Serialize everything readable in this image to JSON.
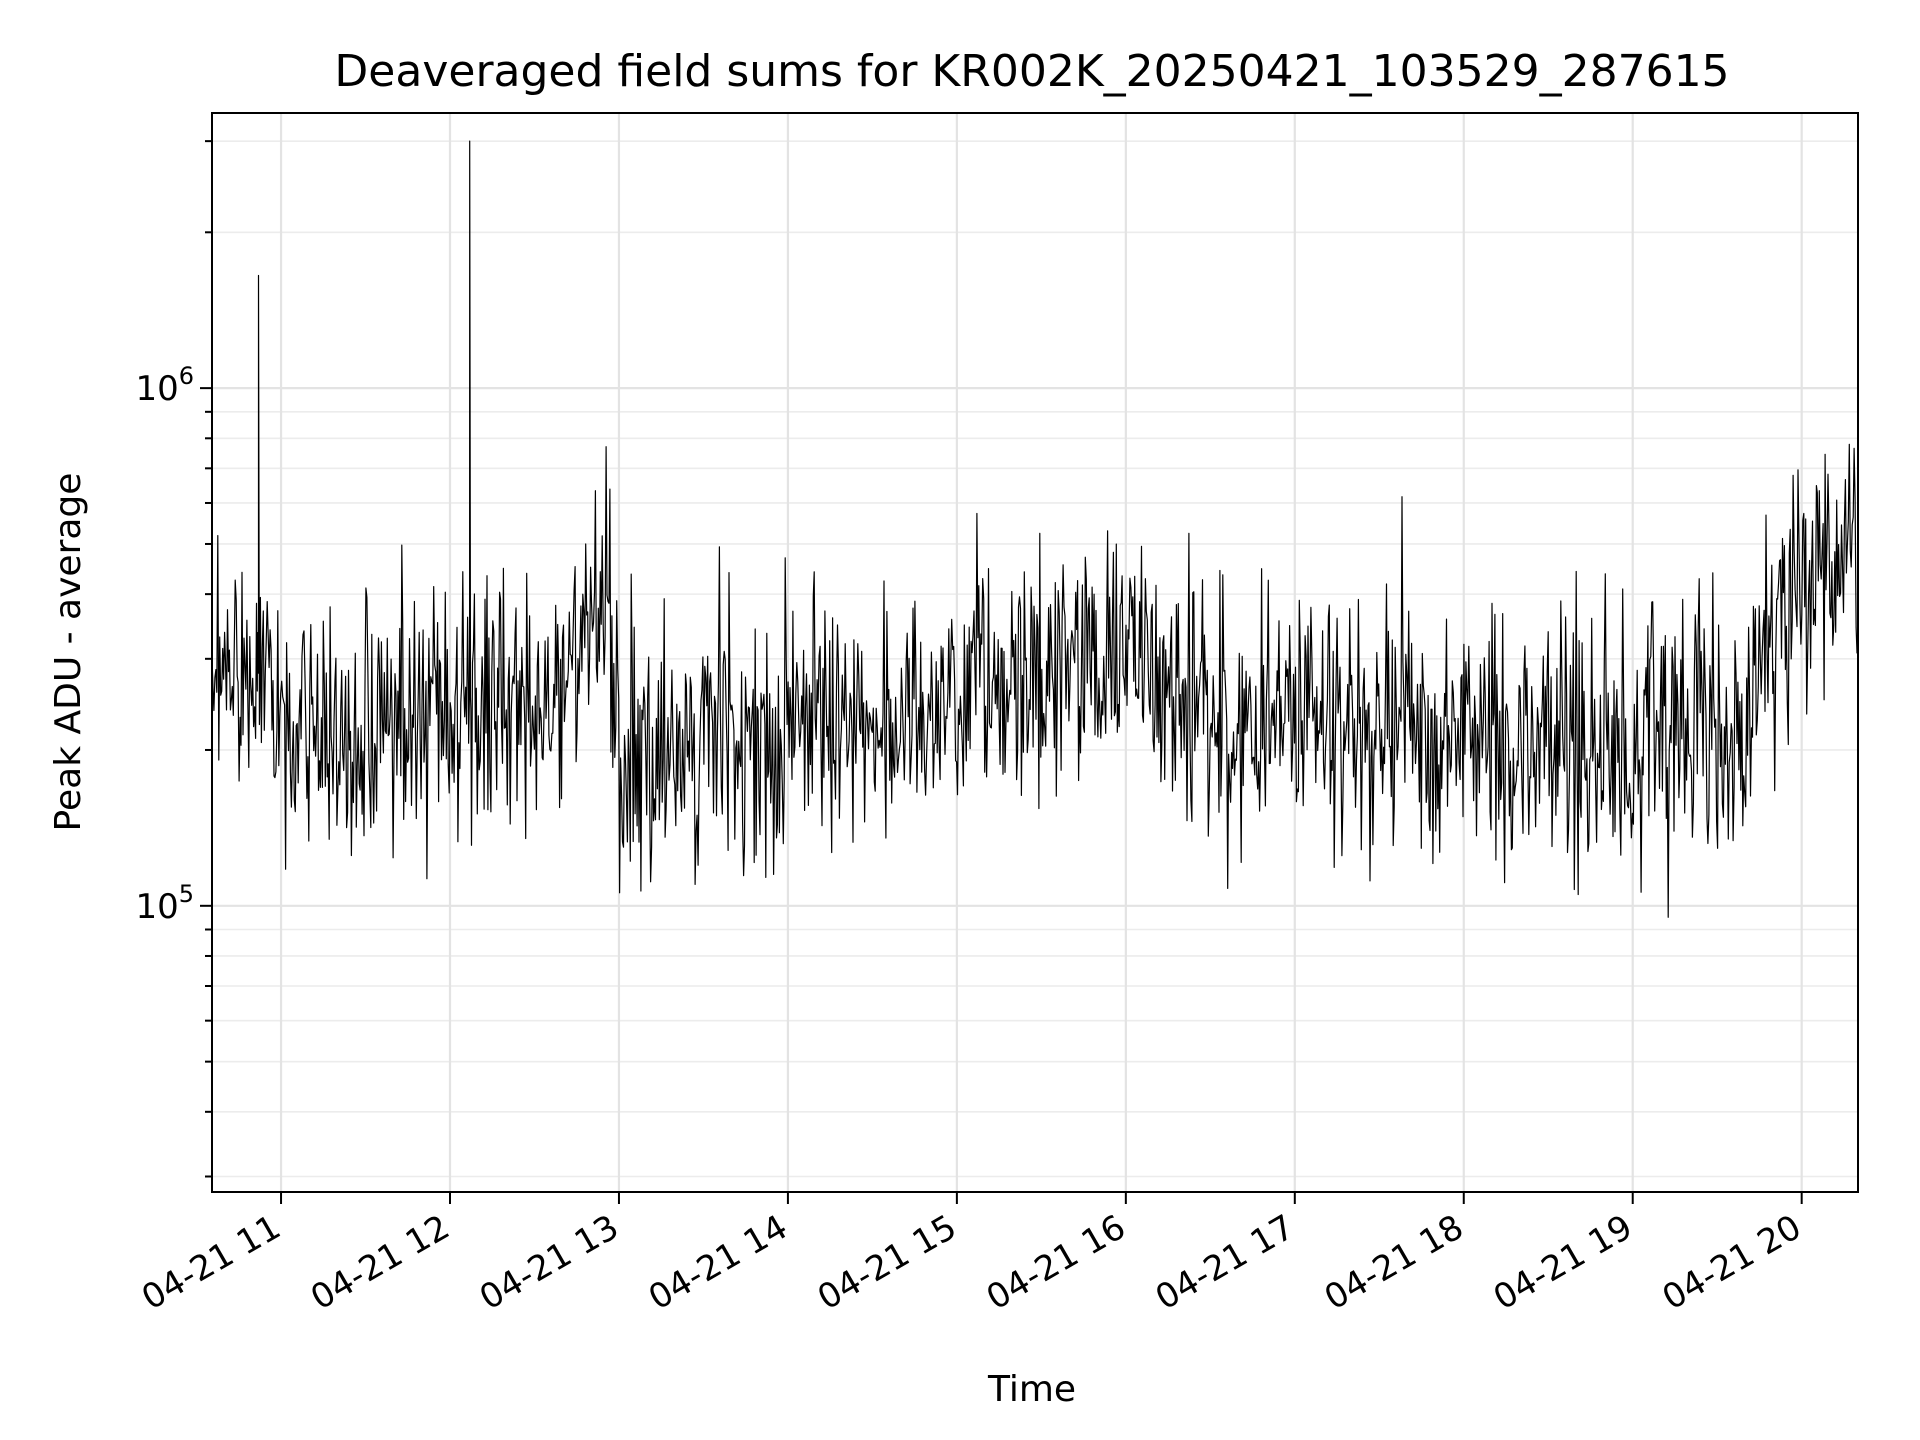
{
  "chart_data": {
    "type": "line",
    "title": "Deaveraged field sums for KR002K_20250421_103529_287615",
    "xlabel": "Time",
    "ylabel": "Peak ADU - average",
    "x_start": "2025-04-21 10:35:29",
    "x_end": "2025-04-21 20:20:00",
    "x_tick_labels": [
      "04-21 11",
      "04-21 12",
      "04-21 13",
      "04-21 14",
      "04-21 15",
      "04-21 16",
      "04-21 17",
      "04-21 18",
      "04-21 19",
      "04-21 20"
    ],
    "x_tick_times": [
      "2025-04-21 11:00",
      "2025-04-21 12:00",
      "2025-04-21 13:00",
      "2025-04-21 14:00",
      "2025-04-21 15:00",
      "2025-04-21 16:00",
      "2025-04-21 17:00",
      "2025-04-21 18:00",
      "2025-04-21 19:00",
      "2025-04-21 20:00"
    ],
    "yscale": "log",
    "ylim": [
      28000,
      3400000
    ],
    "y_major_ticks": [
      {
        "value": 100000,
        "base": "10",
        "exp": "5"
      },
      {
        "value": 1000000,
        "base": "10",
        "exp": "6"
      }
    ],
    "y_minor_ticks": [
      30000,
      40000,
      50000,
      60000,
      70000,
      80000,
      90000,
      200000,
      300000,
      400000,
      500000,
      600000,
      700000,
      800000,
      900000,
      2000000,
      3000000
    ],
    "grid": true,
    "series": [
      {
        "color": "#000000",
        "x": [
          "2025-04-21 10:35",
          "2025-04-21 10:45",
          "2025-04-21 10:52",
          "2025-04-21 10:54",
          "2025-04-21 11:00",
          "2025-04-21 11:20",
          "2025-04-21 11:40",
          "2025-04-21 12:00",
          "2025-04-21 12:07",
          "2025-04-21 12:20",
          "2025-04-21 12:40",
          "2025-04-21 12:55",
          "2025-04-21 13:00",
          "2025-04-21 13:20",
          "2025-04-21 13:40",
          "2025-04-21 14:00",
          "2025-04-21 14:20",
          "2025-04-21 14:40",
          "2025-04-21 15:00",
          "2025-04-21 15:06",
          "2025-04-21 15:20",
          "2025-04-21 15:40",
          "2025-04-21 16:00",
          "2025-04-21 16:20",
          "2025-04-21 16:40",
          "2025-04-21 17:00",
          "2025-04-21 17:20",
          "2025-04-21 17:40",
          "2025-04-21 18:00",
          "2025-04-21 18:20",
          "2025-04-21 18:40",
          "2025-04-21 19:00",
          "2025-04-21 19:20",
          "2025-04-21 19:40",
          "2025-04-21 20:00",
          "2025-04-21 20:10",
          "2025-04-21 20:20"
        ],
        "y": [
          250000,
          300000,
          1650000,
          320000,
          220000,
          210000,
          240000,
          250000,
          3000000,
          230000,
          260000,
          420000,
          190000,
          200000,
          210000,
          220000,
          230000,
          240000,
          260000,
          280000,
          270000,
          290000,
          320000,
          250000,
          220000,
          240000,
          210000,
          230000,
          220000,
          210000,
          200000,
          210000,
          220000,
          230000,
          450000,
          500000,
          480000
        ]
      }
    ]
  }
}
